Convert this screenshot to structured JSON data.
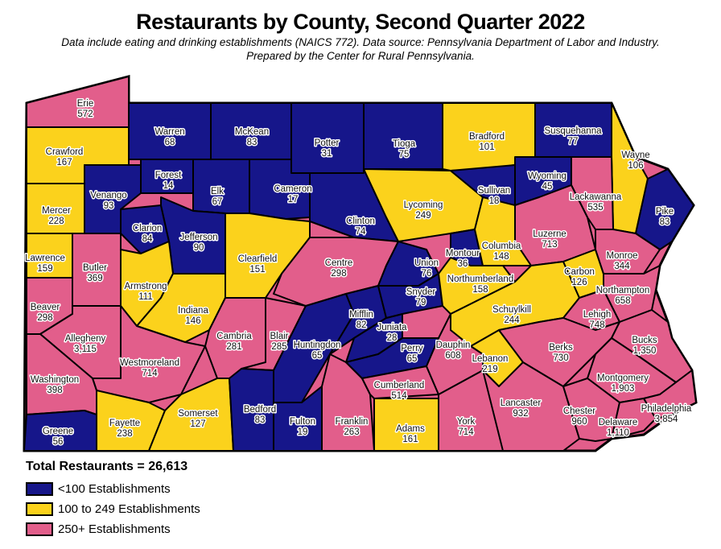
{
  "title": "Restaurants by County, Second Quarter 2022",
  "subtitle_line1": "Data include eating and drinking establishments (NAICS 772). Data source: Pennsylvania Department of Labor and Industry.",
  "subtitle_line2": "Prepared by the Center for Rural Pennsylvania.",
  "colors": {
    "low": "#16168a",
    "mid": "#fbd21c",
    "high": "#e25e8b"
  },
  "legend": {
    "total": "Total Restaurants = 26,613",
    "items": [
      {
        "key": "low",
        "label": "<100 Establishments"
      },
      {
        "key": "mid",
        "label": "100 to 249 Establishments"
      },
      {
        "key": "high",
        "label": "250+ Establishments"
      }
    ]
  },
  "counties": [
    {
      "name": "Erie",
      "count": "572",
      "cat": "high"
    },
    {
      "name": "Crawford",
      "count": "167",
      "cat": "mid"
    },
    {
      "name": "Warren",
      "count": "68",
      "cat": "low"
    },
    {
      "name": "McKean",
      "count": "83",
      "cat": "low"
    },
    {
      "name": "Potter",
      "count": "31",
      "cat": "low"
    },
    {
      "name": "Tioga",
      "count": "75",
      "cat": "low"
    },
    {
      "name": "Bradford",
      "count": "101",
      "cat": "mid"
    },
    {
      "name": "Susquehanna",
      "count": "77",
      "cat": "low"
    },
    {
      "name": "Wayne",
      "count": "106",
      "cat": "mid"
    },
    {
      "name": "Pike",
      "count": "83",
      "cat": "low"
    },
    {
      "name": "Mercer",
      "count": "228",
      "cat": "mid"
    },
    {
      "name": "Venango",
      "count": "93",
      "cat": "low"
    },
    {
      "name": "Forest",
      "count": "14",
      "cat": "low"
    },
    {
      "name": "Elk",
      "count": "67",
      "cat": "low"
    },
    {
      "name": "Cameron",
      "count": "17",
      "cat": "low"
    },
    {
      "name": "Clinton",
      "count": "74",
      "cat": "low"
    },
    {
      "name": "Lycoming",
      "count": "249",
      "cat": "mid"
    },
    {
      "name": "Sullivan",
      "count": "18",
      "cat": "low"
    },
    {
      "name": "Wyoming",
      "count": "45",
      "cat": "low"
    },
    {
      "name": "Lackawanna",
      "count": "535",
      "cat": "high"
    },
    {
      "name": "Luzerne",
      "count": "713",
      "cat": "high"
    },
    {
      "name": "Clarion",
      "count": "84",
      "cat": "low"
    },
    {
      "name": "Jefferson",
      "count": "90",
      "cat": "low"
    },
    {
      "name": "Clearfield",
      "count": "151",
      "cat": "mid"
    },
    {
      "name": "Centre",
      "count": "298",
      "cat": "high"
    },
    {
      "name": "Lawrence",
      "count": "159",
      "cat": "mid"
    },
    {
      "name": "Butler",
      "count": "369",
      "cat": "high"
    },
    {
      "name": "Armstrong",
      "count": "111",
      "cat": "mid"
    },
    {
      "name": "Indiana",
      "count": "146",
      "cat": "mid"
    },
    {
      "name": "Beaver",
      "count": "298",
      "cat": "high"
    },
    {
      "name": "Allegheny",
      "count": "3,115",
      "cat": "high"
    },
    {
      "name": "Westmoreland",
      "count": "714",
      "cat": "high"
    },
    {
      "name": "Washington",
      "count": "398",
      "cat": "high"
    },
    {
      "name": "Greene",
      "count": "56",
      "cat": "low"
    },
    {
      "name": "Fayette",
      "count": "238",
      "cat": "mid"
    },
    {
      "name": "Somerset",
      "count": "127",
      "cat": "mid"
    },
    {
      "name": "Cambria",
      "count": "281",
      "cat": "high"
    },
    {
      "name": "Blair",
      "count": "285",
      "cat": "high"
    },
    {
      "name": "Bedford",
      "count": "83",
      "cat": "low"
    },
    {
      "name": "Huntingdon",
      "count": "65",
      "cat": "low"
    },
    {
      "name": "Fulton",
      "count": "19",
      "cat": "low"
    },
    {
      "name": "Franklin",
      "count": "263",
      "cat": "high"
    },
    {
      "name": "Mifflin",
      "count": "82",
      "cat": "low"
    },
    {
      "name": "Juniata",
      "count": "28",
      "cat": "low"
    },
    {
      "name": "Perry",
      "count": "65",
      "cat": "low"
    },
    {
      "name": "Cumberland",
      "count": "514",
      "cat": "high"
    },
    {
      "name": "Adams",
      "count": "161",
      "cat": "mid"
    },
    {
      "name": "York",
      "count": "714",
      "cat": "high"
    },
    {
      "name": "Dauphin",
      "count": "608",
      "cat": "high"
    },
    {
      "name": "Lebanon",
      "count": "219",
      "cat": "mid"
    },
    {
      "name": "Lancaster",
      "count": "932",
      "cat": "high"
    },
    {
      "name": "Union",
      "count": "76",
      "cat": "low"
    },
    {
      "name": "Snyder",
      "count": "79",
      "cat": "low"
    },
    {
      "name": "Northumberland",
      "count": "158",
      "cat": "mid"
    },
    {
      "name": "Montour",
      "count": "36",
      "cat": "low"
    },
    {
      "name": "Columbia",
      "count": "148",
      "cat": "mid"
    },
    {
      "name": "Schuylkill",
      "count": "244",
      "cat": "mid"
    },
    {
      "name": "Carbon",
      "count": "126",
      "cat": "mid"
    },
    {
      "name": "Monroe",
      "count": "344",
      "cat": "high"
    },
    {
      "name": "Northampton",
      "count": "658",
      "cat": "high"
    },
    {
      "name": "Lehigh",
      "count": "748",
      "cat": "high"
    },
    {
      "name": "Berks",
      "count": "730",
      "cat": "high"
    },
    {
      "name": "Bucks",
      "count": "1,350",
      "cat": "high"
    },
    {
      "name": "Montgomery",
      "count": "1,903",
      "cat": "high"
    },
    {
      "name": "Chester",
      "count": "960",
      "cat": "high"
    },
    {
      "name": "Delaware",
      "count": "1,110",
      "cat": "high"
    },
    {
      "name": "Philadelphia",
      "count": "3,854",
      "cat": "high"
    }
  ]
}
